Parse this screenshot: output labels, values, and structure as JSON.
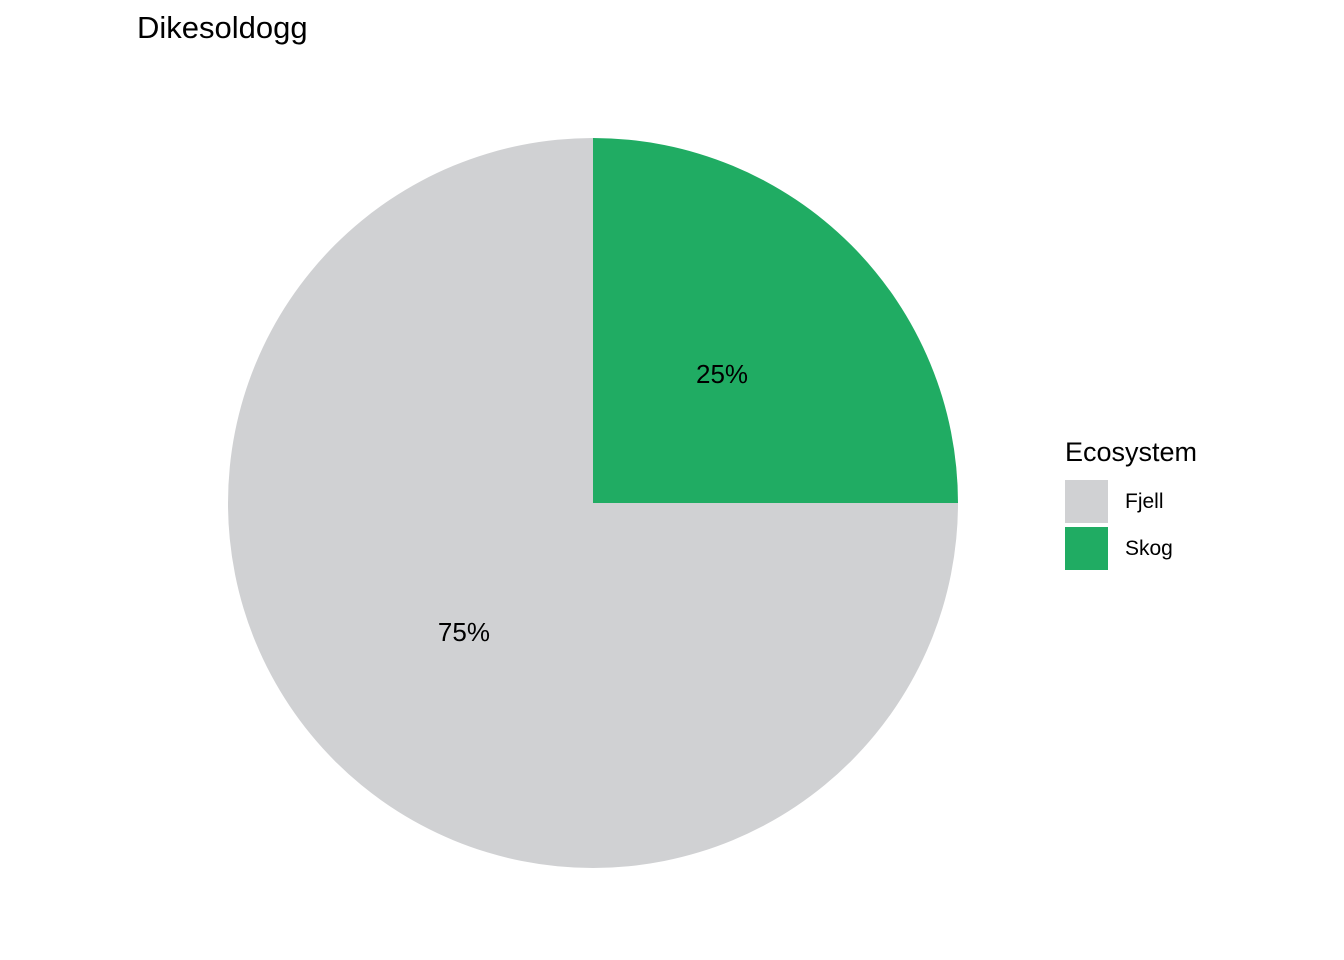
{
  "chart_data": {
    "type": "pie",
    "title": "Dikesoldogg",
    "legend_title": "Ecosystem",
    "legend_position": "right",
    "slices": [
      {
        "name": "Skog",
        "value": 25,
        "label": "25%",
        "color": "#20AC63"
      },
      {
        "name": "Fjell",
        "value": 75,
        "label": "75%",
        "color": "#D0D1D3"
      }
    ],
    "legend": [
      {
        "name": "Fjell",
        "color": "#D0D1D3"
      },
      {
        "name": "Skog",
        "color": "#20AC63"
      }
    ]
  }
}
